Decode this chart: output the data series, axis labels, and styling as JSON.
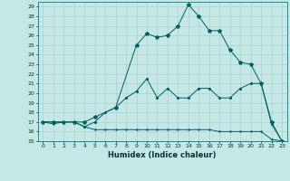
{
  "xlabel": "Humidex (Indice chaleur)",
  "ylabel": "",
  "xlim": [
    -0.5,
    23.5
  ],
  "ylim": [
    15,
    29.5
  ],
  "background_color": "#c5e8e5",
  "grid_color": "#a0ccc8",
  "line_color": "#006060",
  "line1_x": [
    0,
    1,
    2,
    3,
    4,
    5,
    6,
    7,
    8,
    9,
    10,
    11,
    12,
    13,
    14,
    15,
    16,
    17,
    18,
    19,
    20,
    21,
    22,
    23
  ],
  "line1_y": [
    17.0,
    16.8,
    17.0,
    17.0,
    16.5,
    16.2,
    16.2,
    16.2,
    16.2,
    16.2,
    16.2,
    16.2,
    16.2,
    16.2,
    16.2,
    16.2,
    16.2,
    16.0,
    16.0,
    16.0,
    16.0,
    16.0,
    15.2,
    15.0
  ],
  "line2_x": [
    0,
    1,
    2,
    3,
    4,
    5,
    7,
    9,
    10,
    11,
    12,
    13,
    14,
    15,
    16,
    17,
    18,
    19,
    20,
    21,
    22,
    23
  ],
  "line2_y": [
    17.0,
    17.0,
    17.0,
    17.0,
    17.0,
    17.5,
    18.5,
    25.0,
    26.2,
    25.8,
    26.0,
    27.0,
    29.2,
    28.0,
    26.5,
    26.5,
    24.5,
    23.2,
    23.0,
    21.0,
    17.0,
    15.0
  ],
  "line3_x": [
    0,
    1,
    2,
    3,
    4,
    5,
    6,
    7,
    8,
    9,
    10,
    11,
    12,
    13,
    14,
    15,
    16,
    17,
    18,
    19,
    20,
    21,
    22,
    23
  ],
  "line3_y": [
    17.0,
    17.0,
    17.0,
    17.0,
    16.5,
    17.0,
    18.0,
    18.5,
    19.5,
    20.2,
    21.5,
    19.5,
    20.5,
    19.5,
    19.5,
    20.5,
    20.5,
    19.5,
    19.5,
    20.5,
    21.0,
    21.0,
    16.8,
    15.0
  ],
  "yticks": [
    15,
    16,
    17,
    18,
    19,
    20,
    21,
    22,
    23,
    24,
    25,
    26,
    27,
    28,
    29
  ],
  "xticks": [
    0,
    1,
    2,
    3,
    4,
    5,
    6,
    7,
    8,
    9,
    10,
    11,
    12,
    13,
    14,
    15,
    16,
    17,
    18,
    19,
    20,
    21,
    22,
    23
  ]
}
